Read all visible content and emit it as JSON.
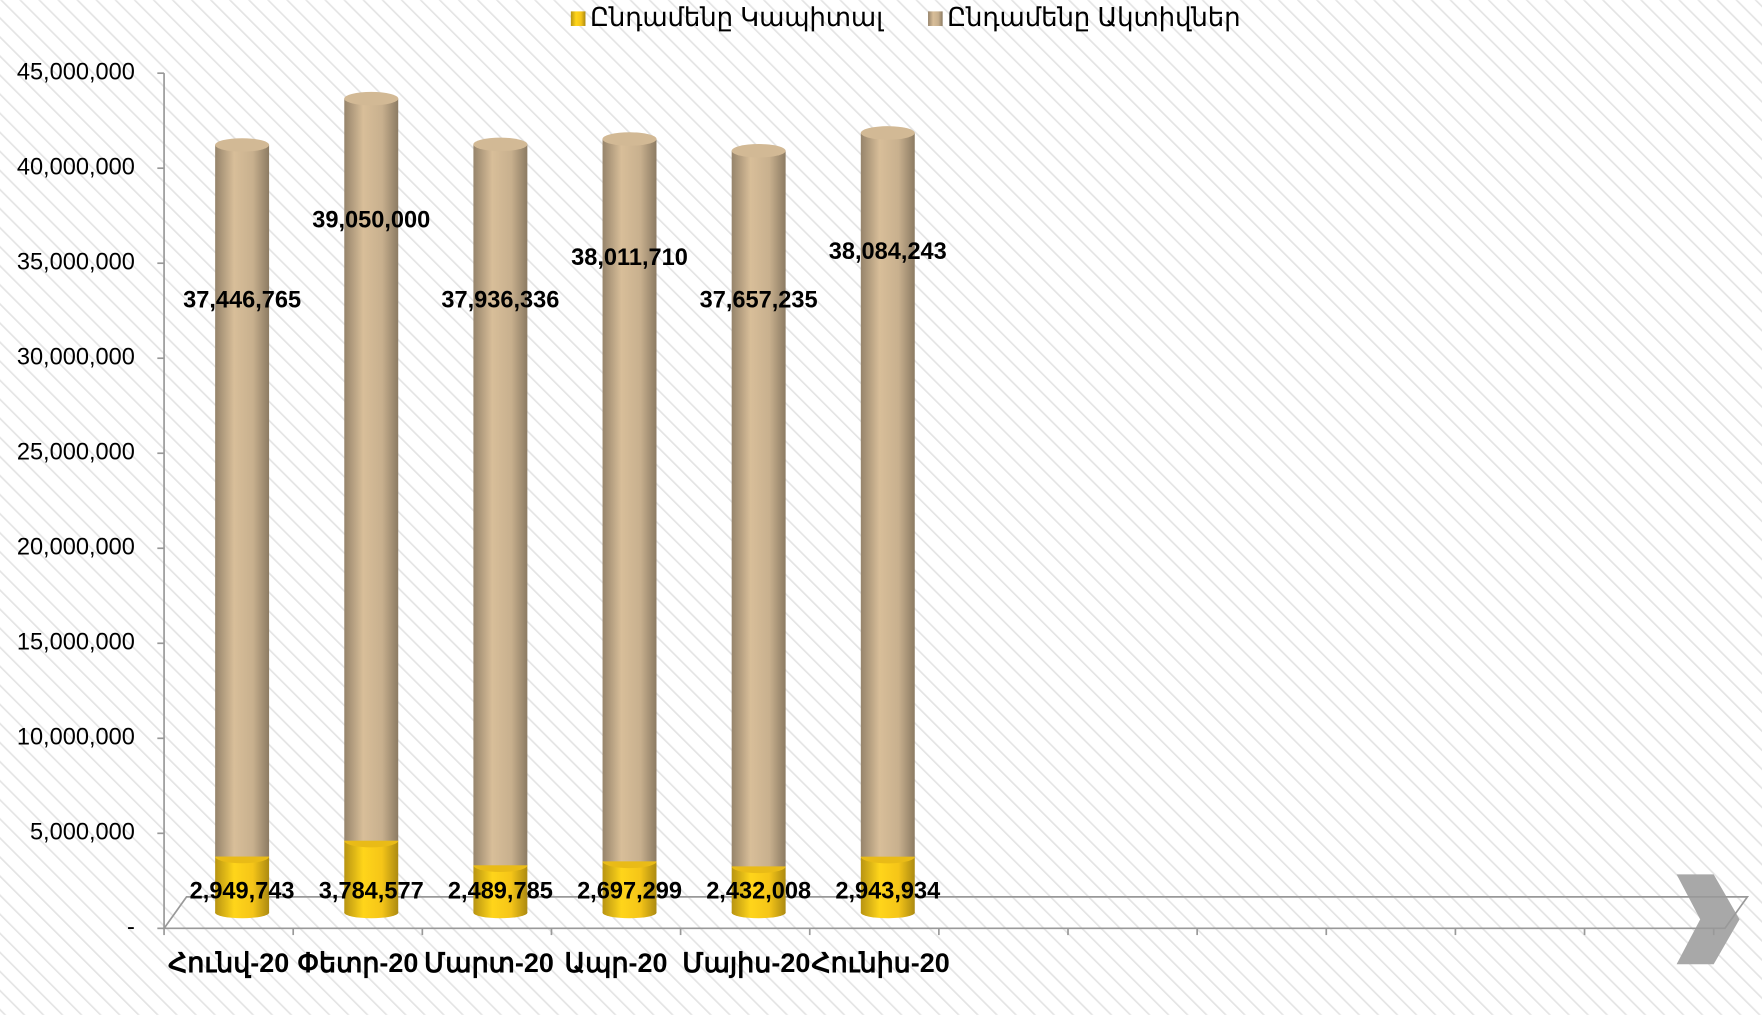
{
  "chart_data": {
    "type": "bar",
    "stacked": true,
    "categories": [
      "Հունվ-20",
      "Փետր-20",
      "Մարտ-20",
      "Ապր-20",
      "Մայիս-20",
      "Հունիս-20",
      null,
      null,
      null,
      null,
      null,
      null
    ],
    "series": [
      {
        "name": "Ընդամենը Կապիտալ",
        "color": "#f5c518",
        "values": [
          2949743,
          3784577,
          2489785,
          2697299,
          2432008,
          2943934,
          null,
          null,
          null,
          null,
          null,
          null
        ],
        "value_labels": [
          "2,949,743",
          "3,784,577",
          "2,489,785",
          "2,697,299",
          "2,432,008",
          "2,943,934",
          null,
          null,
          null,
          null,
          null,
          null
        ]
      },
      {
        "name": "Ընդամենը Ակտիվներ",
        "color": "#c8b08e",
        "values": [
          37446765,
          39050000,
          37936336,
          38011710,
          37657235,
          38084243,
          null,
          null,
          null,
          null,
          null,
          null
        ],
        "value_labels": [
          "37,446,765",
          "39,050,000",
          "37,936,336",
          "38,011,710",
          "37,657,235",
          "38,084,243",
          null,
          null,
          null,
          null,
          null,
          null
        ]
      }
    ],
    "ylim": [
      0,
      45000000
    ],
    "yticks": [
      {
        "value": 0,
        "label": "-"
      },
      {
        "value": 5000000,
        "label": "5,000,000"
      },
      {
        "value": 10000000,
        "label": "10,000,000"
      },
      {
        "value": 15000000,
        "label": "15,000,000"
      },
      {
        "value": 20000000,
        "label": "20,000,000"
      },
      {
        "value": 25000000,
        "label": "25,000,000"
      },
      {
        "value": 30000000,
        "label": "30,000,000"
      },
      {
        "value": 35000000,
        "label": "35,000,000"
      },
      {
        "value": 40000000,
        "label": "40,000,000"
      },
      {
        "value": 45000000,
        "label": "45,000,000"
      }
    ],
    "legend": "top"
  }
}
